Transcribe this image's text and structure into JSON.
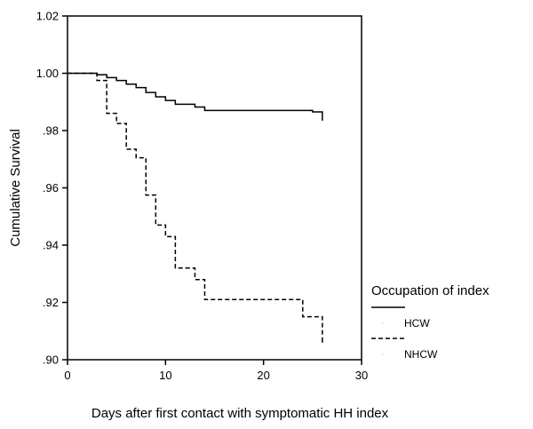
{
  "chart_data": {
    "type": "line",
    "subtype": "kaplan-meier-step",
    "title": "",
    "xlabel": "Days after first contact with symptomatic HH index",
    "ylabel": "Cumulative Survival",
    "xlim": [
      0,
      30
    ],
    "ylim": [
      0.9,
      1.02
    ],
    "xticks": [
      0,
      10,
      20,
      30
    ],
    "xtick_labels": [
      "0",
      "10",
      "20",
      "30"
    ],
    "yticks": [
      0.9,
      0.92,
      0.94,
      0.96,
      0.98,
      1.0,
      1.02
    ],
    "ytick_labels": [
      ".90",
      ".92",
      ".94",
      ".96",
      ".98",
      "1.00",
      "1.02"
    ],
    "grid": false,
    "legend": {
      "title": "Occupation of index",
      "placement": "right"
    },
    "series": [
      {
        "name": "HCW",
        "style": "solid",
        "color": "#000000",
        "steps": [
          [
            0,
            1.0
          ],
          [
            3,
            0.9995
          ],
          [
            4,
            0.9985
          ],
          [
            5,
            0.9975
          ],
          [
            6,
            0.9962
          ],
          [
            7,
            0.995
          ],
          [
            8,
            0.9933
          ],
          [
            9,
            0.9918
          ],
          [
            10,
            0.9905
          ],
          [
            11,
            0.9892
          ],
          [
            13,
            0.9882
          ],
          [
            14,
            0.987
          ],
          [
            25,
            0.9865
          ],
          [
            26,
            0.985
          ]
        ]
      },
      {
        "name": "NHCW",
        "style": "dashed",
        "color": "#000000",
        "steps": [
          [
            0,
            1.0
          ],
          [
            3,
            0.9975
          ],
          [
            4,
            0.986
          ],
          [
            5,
            0.9825
          ],
          [
            6,
            0.9735
          ],
          [
            7,
            0.9705
          ],
          [
            8,
            0.9575
          ],
          [
            9,
            0.947
          ],
          [
            10,
            0.943
          ],
          [
            11,
            0.932
          ],
          [
            13,
            0.928
          ],
          [
            14,
            0.921
          ],
          [
            24,
            0.915
          ],
          [
            26,
            0.9075
          ]
        ]
      }
    ]
  }
}
